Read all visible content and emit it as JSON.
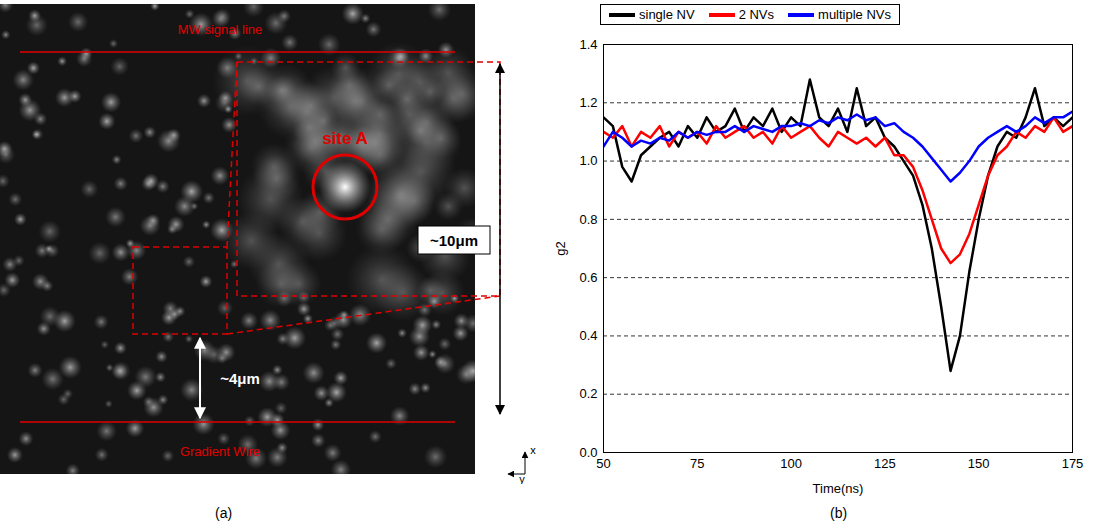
{
  "panel_a": {
    "label": "(a)",
    "texts": {
      "top_line": "MW signal line",
      "bottom_line": "Gradient Wire",
      "site": "site A",
      "scale_large": "~10μm",
      "scale_small": "~4μm",
      "axis_x": "x",
      "axis_y": "y"
    }
  },
  "chart_data": {
    "type": "line",
    "panel_label": "(b)",
    "x_label": "Time(ns)",
    "y_label": "g2",
    "x": [
      50,
      52.5,
      55,
      57.5,
      60,
      62.5,
      65,
      67.5,
      70,
      72.5,
      75,
      77.5,
      80,
      82.5,
      85,
      87.5,
      90,
      92.5,
      95,
      97.5,
      100,
      102.5,
      105,
      107.5,
      110,
      112.5,
      115,
      117.5,
      120,
      122.5,
      125,
      127.5,
      130,
      132.5,
      135,
      137.5,
      140,
      142.5,
      145,
      147.5,
      150,
      152.5,
      155,
      157.5,
      160,
      162.5,
      165,
      167.5,
      170,
      172.5,
      175
    ],
    "series": [
      {
        "name": "single NV",
        "color": "#000000",
        "values": [
          1.15,
          1.12,
          0.98,
          0.93,
          1.02,
          1.05,
          1.08,
          1.1,
          1.05,
          1.12,
          1.08,
          1.15,
          1.1,
          1.12,
          1.18,
          1.1,
          1.15,
          1.12,
          1.18,
          1.1,
          1.15,
          1.12,
          1.28,
          1.15,
          1.12,
          1.18,
          1.1,
          1.25,
          1.12,
          1.15,
          1.08,
          1.05,
          1.0,
          0.95,
          0.85,
          0.7,
          0.5,
          0.28,
          0.4,
          0.62,
          0.8,
          0.95,
          1.05,
          1.1,
          1.08,
          1.15,
          1.25,
          1.12,
          1.15,
          1.12,
          1.15
        ]
      },
      {
        "name": "2 NVs",
        "color": "#ff0000",
        "values": [
          1.1,
          1.08,
          1.12,
          1.05,
          1.1,
          1.08,
          1.12,
          1.05,
          1.1,
          1.08,
          1.1,
          1.06,
          1.12,
          1.08,
          1.1,
          1.12,
          1.08,
          1.1,
          1.06,
          1.12,
          1.08,
          1.1,
          1.12,
          1.08,
          1.05,
          1.1,
          1.08,
          1.06,
          1.08,
          1.05,
          1.08,
          1.02,
          1.02,
          0.98,
          0.9,
          0.8,
          0.7,
          0.65,
          0.68,
          0.75,
          0.85,
          0.95,
          1.02,
          1.05,
          1.1,
          1.08,
          1.12,
          1.1,
          1.15,
          1.1,
          1.12
        ]
      },
      {
        "name": "multiple NVs",
        "color": "#0000ff",
        "values": [
          1.05,
          1.1,
          1.08,
          1.05,
          1.07,
          1.06,
          1.08,
          1.07,
          1.1,
          1.08,
          1.1,
          1.09,
          1.1,
          1.1,
          1.12,
          1.1,
          1.12,
          1.11,
          1.1,
          1.12,
          1.12,
          1.13,
          1.12,
          1.14,
          1.13,
          1.15,
          1.14,
          1.16,
          1.14,
          1.15,
          1.12,
          1.13,
          1.1,
          1.08,
          1.05,
          1.01,
          0.97,
          0.93,
          0.96,
          1.0,
          1.05,
          1.08,
          1.1,
          1.12,
          1.1,
          1.12,
          1.15,
          1.13,
          1.15,
          1.15,
          1.17
        ]
      }
    ],
    "xlim": [
      50,
      175
    ],
    "xticks": [
      50,
      75,
      100,
      125,
      150,
      175
    ],
    "ylim": [
      0,
      1.4
    ],
    "yticks": [
      0,
      0.2,
      0.4,
      0.6,
      0.8,
      1,
      1.2,
      1.4
    ],
    "grid": true,
    "legend": "top"
  }
}
